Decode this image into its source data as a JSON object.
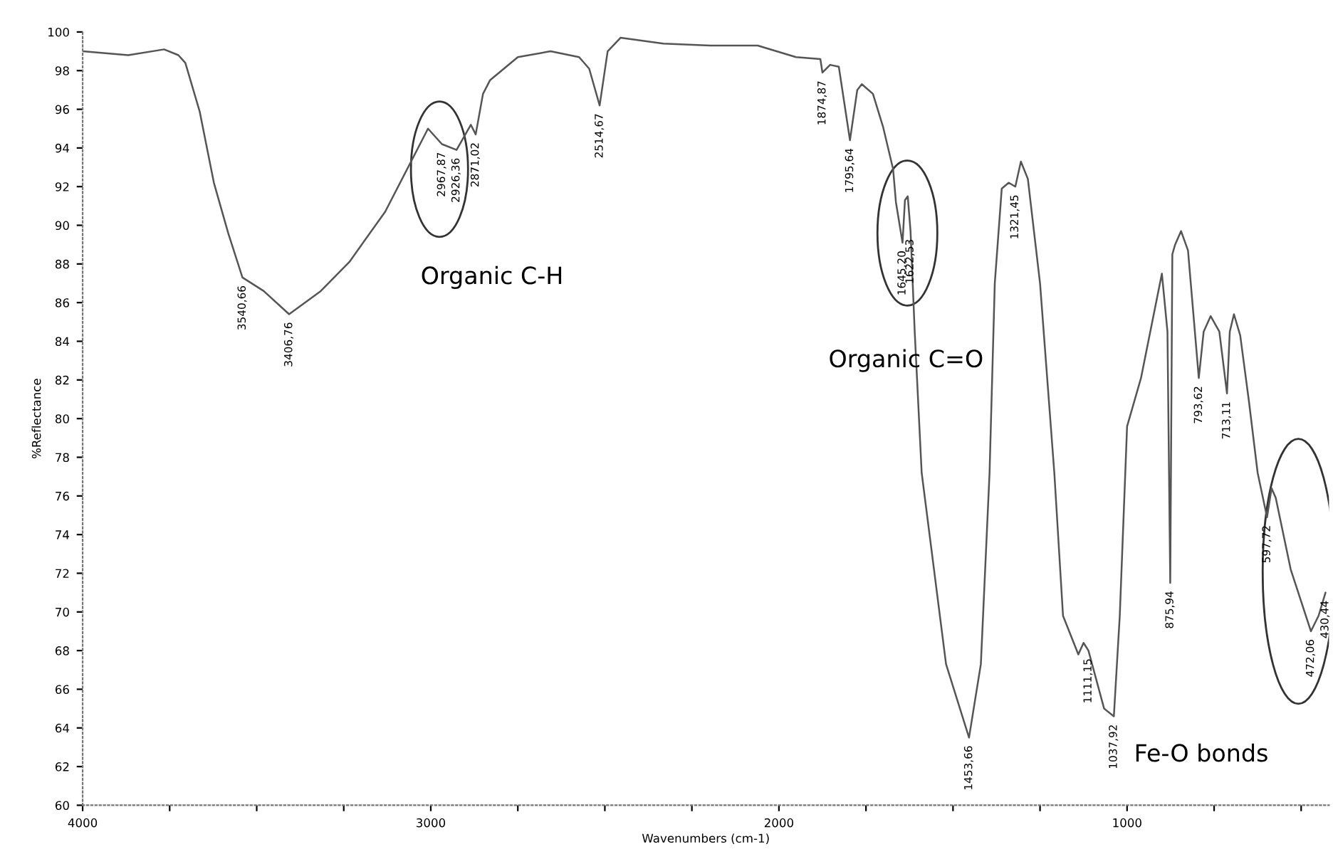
{
  "chart_data": {
    "type": "line",
    "xlabel": "Wavenumbers (cm-1)",
    "ylabel": "%Reflectance",
    "xlim": [
      4000,
      420
    ],
    "ylim": [
      60,
      100
    ],
    "xticks": [
      4000,
      {
        "value": 3750,
        "label": null
      },
      {
        "value": 3500,
        "label": null
      },
      {
        "value": 3250,
        "label": null
      },
      3000,
      {
        "value": 2750,
        "label": null
      },
      {
        "value": 2500,
        "label": null
      },
      {
        "value": 2250,
        "label": null
      },
      2000,
      {
        "value": 1750,
        "label": null
      },
      {
        "value": 1500,
        "label": null
      },
      {
        "value": 1250,
        "label": null
      },
      1000,
      {
        "value": 750,
        "label": null
      },
      {
        "value": 500,
        "label": null
      }
    ],
    "yticks": [
      60,
      62,
      64,
      66,
      68,
      70,
      72,
      74,
      76,
      78,
      80,
      82,
      84,
      86,
      88,
      90,
      92,
      94,
      96,
      98,
      100
    ],
    "grid": false,
    "legend": false,
    "marker": "none",
    "line_style": "solid",
    "series": [
      {
        "color": "#555555",
        "x": [
          4000,
          3869,
          3766,
          3725,
          3705,
          3664,
          3623,
          3582,
          3541,
          3480,
          3407,
          3316,
          3234,
          3131,
          3008,
          2968,
          2926,
          2885,
          2871,
          2850,
          2830,
          2750,
          2656,
          2574,
          2545,
          2515,
          2492,
          2455,
          2332,
          2197,
          2061,
          1951,
          1881,
          1875,
          1853,
          1828,
          1796,
          1775,
          1762,
          1730,
          1701,
          1672,
          1664,
          1645,
          1638,
          1630,
          1622,
          1610,
          1590,
          1520,
          1454,
          1420,
          1395,
          1380,
          1360,
          1340,
          1321,
          1305,
          1285,
          1250,
          1209,
          1184,
          1140,
          1125,
          1111,
          1066,
          1038,
          1021,
          1000,
          960,
          900,
          884,
          876,
          870,
          862,
          845,
          825,
          794,
          780,
          760,
          735,
          713,
          705,
          693,
          675,
          650,
          625,
          598,
          585,
          573,
          530,
          472,
          450,
          430
        ],
        "values": [
          99.0,
          98.8,
          99.1,
          98.8,
          98.4,
          95.9,
          92.2,
          89.6,
          87.3,
          86.6,
          85.4,
          86.6,
          88.1,
          90.7,
          95.0,
          94.2,
          93.9,
          95.2,
          94.7,
          96.8,
          97.5,
          98.7,
          99.0,
          98.7,
          98.1,
          96.2,
          99.0,
          99.7,
          99.4,
          99.3,
          99.3,
          98.7,
          98.6,
          97.9,
          98.3,
          98.2,
          94.4,
          97.0,
          97.3,
          96.8,
          95.1,
          92.9,
          91.2,
          89.1,
          91.3,
          91.5,
          89.7,
          84.5,
          77.2,
          67.3,
          63.5,
          67.3,
          77.2,
          87.0,
          91.9,
          92.2,
          92.0,
          93.3,
          92.4,
          87.0,
          77.2,
          69.8,
          67.8,
          68.4,
          68.0,
          65.0,
          64.6,
          69.8,
          79.6,
          82.1,
          87.5,
          84.5,
          71.5,
          88.5,
          89.0,
          89.7,
          88.7,
          82.1,
          84.5,
          85.3,
          84.5,
          81.3,
          84.5,
          85.4,
          84.3,
          80.9,
          77.2,
          74.9,
          76.4,
          75.9,
          72.2,
          69.0,
          69.8,
          71.0
        ]
      }
    ],
    "annotations": [
      {
        "text": "3540,66",
        "x": 3540.66,
        "y": 87.3
      },
      {
        "text": "3406,76",
        "x": 3406.76,
        "y": 85.4
      },
      {
        "text": "2967,87",
        "x": 2967.87,
        "y": 94.2
      },
      {
        "text": "2926,36",
        "x": 2926.36,
        "y": 93.9
      },
      {
        "text": "2871,02",
        "x": 2871.02,
        "y": 94.7
      },
      {
        "text": "2514,67",
        "x": 2514.67,
        "y": 96.2
      },
      {
        "text": "1874,87",
        "x": 1874.87,
        "y": 97.9
      },
      {
        "text": "1795,64",
        "x": 1795.64,
        "y": 94.4
      },
      {
        "text": "1645,20",
        "x": 1645.2,
        "y": 89.1
      },
      {
        "text": "1622,53",
        "x": 1622.53,
        "y": 89.7
      },
      {
        "text": "1453,66",
        "x": 1453.66,
        "y": 63.5
      },
      {
        "text": "1321,45",
        "x": 1321.45,
        "y": 92.0
      },
      {
        "text": "1111,15",
        "x": 1111.15,
        "y": 68.0
      },
      {
        "text": "1037,92",
        "x": 1037.92,
        "y": 64.6
      },
      {
        "text": "875,94",
        "x": 875.94,
        "y": 71.5
      },
      {
        "text": "793,62",
        "x": 793.62,
        "y": 82.1
      },
      {
        "text": "713,11",
        "x": 713.11,
        "y": 81.3
      },
      {
        "text": "597,72",
        "x": 597.72,
        "y": 74.9
      },
      {
        "text": "472,06",
        "x": 472.06,
        "y": 69.0
      },
      {
        "text": "430,44",
        "x": 430.44,
        "y": 71.0
      },
      "Organic C-H",
      "Organic C=O",
      "Fe-O bonds"
    ]
  }
}
